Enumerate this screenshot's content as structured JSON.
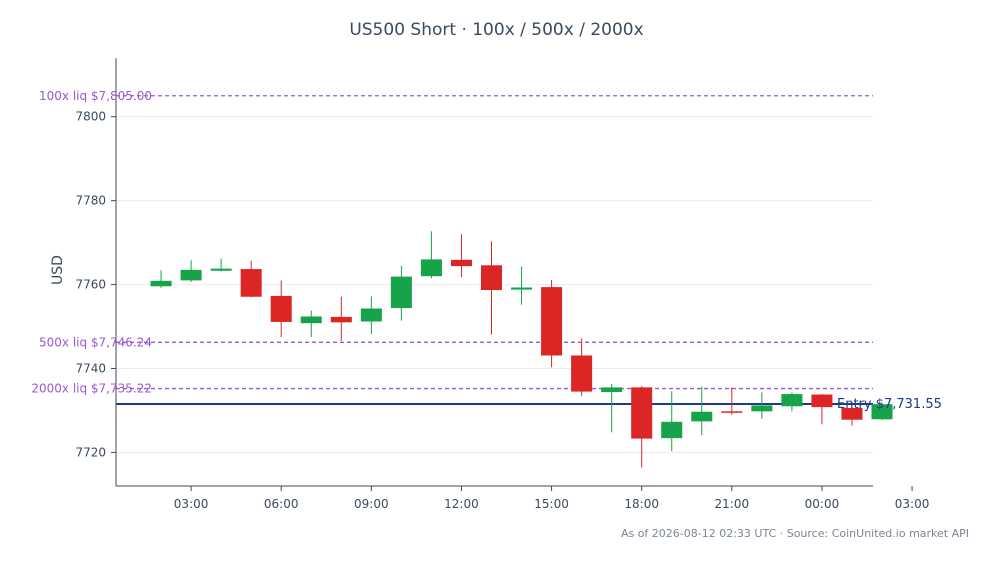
{
  "chart_data": {
    "type": "candlestick",
    "title": "US500 Short · 100x / 500x / 2000x",
    "ylabel": "USD",
    "xlabel": "",
    "ylim": [
      7712,
      7814
    ],
    "xlim": [
      0.5,
      25.7
    ],
    "x_ticks": [
      {
        "x": 3,
        "label": "03:00"
      },
      {
        "x": 6,
        "label": "06:00"
      },
      {
        "x": 9,
        "label": "09:00"
      },
      {
        "x": 12,
        "label": "12:00"
      },
      {
        "x": 15,
        "label": "15:00"
      },
      {
        "x": 18,
        "label": "18:00"
      },
      {
        "x": 21,
        "label": "21:00"
      },
      {
        "x": 24,
        "label": "00:00"
      },
      {
        "x": 27,
        "label": "03:00"
      }
    ],
    "y_ticks": [
      7720,
      7740,
      7760,
      7780,
      7800
    ],
    "grid": true,
    "candles": [
      {
        "t": 2,
        "o": 7759.6,
        "h": 7763.4,
        "l": 7759.2,
        "c": 7760.9
      },
      {
        "t": 3,
        "o": 7761.0,
        "h": 7765.8,
        "l": 7760.6,
        "c": 7763.5
      },
      {
        "t": 4,
        "o": 7763.3,
        "h": 7766.2,
        "l": 7763.1,
        "c": 7763.8
      },
      {
        "t": 5,
        "o": 7763.7,
        "h": 7765.7,
        "l": 7757.0,
        "c": 7757.1
      },
      {
        "t": 6,
        "o": 7757.3,
        "h": 7761.0,
        "l": 7747.5,
        "c": 7751.1
      },
      {
        "t": 7,
        "o": 7750.8,
        "h": 7753.8,
        "l": 7747.5,
        "c": 7752.4
      },
      {
        "t": 8,
        "o": 7752.3,
        "h": 7757.1,
        "l": 7746.6,
        "c": 7751.0
      },
      {
        "t": 9,
        "o": 7751.2,
        "h": 7757.2,
        "l": 7748.2,
        "c": 7754.3
      },
      {
        "t": 10,
        "o": 7754.4,
        "h": 7764.5,
        "l": 7751.4,
        "c": 7761.9
      },
      {
        "t": 11,
        "o": 7762.0,
        "h": 7772.7,
        "l": 7761.5,
        "c": 7766.0
      },
      {
        "t": 12,
        "o": 7765.9,
        "h": 7772.0,
        "l": 7761.8,
        "c": 7764.4
      },
      {
        "t": 13,
        "o": 7764.6,
        "h": 7770.3,
        "l": 7748.1,
        "c": 7758.7
      },
      {
        "t": 14,
        "o": 7758.8,
        "h": 7764.3,
        "l": 7755.2,
        "c": 7759.3
      },
      {
        "t": 15,
        "o": 7759.4,
        "h": 7761.1,
        "l": 7740.3,
        "c": 7743.1
      },
      {
        "t": 16,
        "o": 7743.1,
        "h": 7747.2,
        "l": 7733.5,
        "c": 7734.5
      },
      {
        "t": 17,
        "o": 7734.4,
        "h": 7736.3,
        "l": 7724.8,
        "c": 7735.5
      },
      {
        "t": 18,
        "o": 7735.5,
        "h": 7735.8,
        "l": 7716.4,
        "c": 7723.3
      },
      {
        "t": 19,
        "o": 7723.4,
        "h": 7734.6,
        "l": 7720.3,
        "c": 7727.3
      },
      {
        "t": 20,
        "o": 7727.4,
        "h": 7735.7,
        "l": 7724.1,
        "c": 7729.7
      },
      {
        "t": 21,
        "o": 7729.8,
        "h": 7735.5,
        "l": 7729.0,
        "c": 7729.6
      },
      {
        "t": 22,
        "o": 7729.8,
        "h": 7734.3,
        "l": 7728.0,
        "c": 7731.2
      },
      {
        "t": 23,
        "o": 7731.0,
        "h": 7734.3,
        "l": 7729.8,
        "c": 7733.9
      },
      {
        "t": 24,
        "o": 7733.8,
        "h": 7733.9,
        "l": 7726.7,
        "c": 7730.8
      },
      {
        "t": 25,
        "o": 7730.6,
        "h": 7732.0,
        "l": 7726.4,
        "c": 7727.8
      },
      {
        "t": 26,
        "o": 7727.9,
        "h": 7732.0,
        "l": 7727.7,
        "c": 7731.5
      }
    ],
    "up_color": "#16a34a",
    "down_color": "#dc2626",
    "levels": [
      {
        "value": 7805.0,
        "label": "100x liq $7,805.00",
        "color": "#9b59d0",
        "style": "dashed"
      },
      {
        "value": 7746.24,
        "label": "500x liq $7,746.24",
        "color": "#9b59d0",
        "style": "dashed"
      },
      {
        "value": 7735.22,
        "label": "2000x liq $7,735.22",
        "color": "#9b59d0",
        "style": "dashed"
      }
    ],
    "entry": {
      "value": 7731.55,
      "label": "Entry $7,731.55",
      "color": "#1e3a8a"
    }
  },
  "footnote": "As of 2026-08-12 02:33 UTC · Source: CoinUnited.io market API"
}
